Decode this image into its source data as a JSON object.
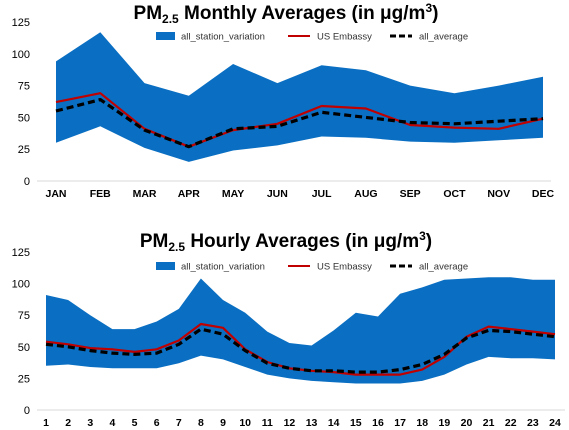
{
  "colors": {
    "band": "#0a6fc2",
    "us_embassy": "#c00000",
    "all_average": "#000000"
  },
  "chart_data": [
    {
      "type": "area",
      "title_prefix": "PM",
      "title_sub": "2.5",
      "title_rest": " Monthly Averages (in μg/m",
      "title_sup": "3",
      "title_end": ")",
      "categories": [
        "JAN",
        "FEB",
        "MAR",
        "APR",
        "MAY",
        "JUN",
        "JUL",
        "AUG",
        "SEP",
        "OCT",
        "NOV",
        "DEC"
      ],
      "ylim": [
        0,
        125
      ],
      "yticks": [
        0,
        25,
        50,
        75,
        100,
        125
      ],
      "legend_position": "top-right",
      "series": [
        {
          "name": "all_station_variation",
          "kind": "band",
          "lower": [
            30,
            43,
            26,
            15,
            24,
            28,
            35,
            34,
            31,
            30,
            32,
            34
          ],
          "upper": [
            94,
            117,
            77,
            67,
            92,
            77,
            91,
            87,
            75,
            69,
            75,
            82
          ]
        },
        {
          "name": "US Embassy",
          "kind": "line",
          "values": [
            62,
            69,
            41,
            27,
            40,
            45,
            59,
            57,
            44,
            42,
            41,
            49
          ]
        },
        {
          "name": "all_average",
          "kind": "dashed",
          "values": [
            55,
            64,
            40,
            27,
            41,
            43,
            54,
            50,
            46,
            45,
            47,
            49
          ]
        }
      ]
    },
    {
      "type": "area",
      "title_prefix": "PM",
      "title_sub": "2.5",
      "title_rest": " Hourly Averages (in μg/m",
      "title_sup": "3",
      "title_end": ")",
      "categories": [
        "1",
        "2",
        "3",
        "4",
        "5",
        "6",
        "7",
        "8",
        "9",
        "10",
        "11",
        "12",
        "13",
        "14",
        "15",
        "16",
        "17",
        "18",
        "19",
        "20",
        "21",
        "22",
        "23",
        "24"
      ],
      "ylim": [
        0,
        125
      ],
      "yticks": [
        0,
        25,
        50,
        75,
        100,
        125
      ],
      "legend_position": "top-right",
      "series": [
        {
          "name": "all_station_variation",
          "kind": "band",
          "lower": [
            35,
            36,
            34,
            33,
            33,
            33,
            37,
            43,
            40,
            34,
            28,
            25,
            23,
            22,
            21,
            21,
            21,
            23,
            28,
            36,
            42,
            41,
            41,
            40
          ],
          "upper": [
            91,
            87,
            75,
            64,
            64,
            70,
            80,
            104,
            87,
            77,
            62,
            53,
            51,
            63,
            77,
            74,
            92,
            97,
            103,
            104,
            105,
            105,
            103,
            103
          ]
        },
        {
          "name": "US Embassy",
          "kind": "line",
          "values": [
            54,
            52,
            49,
            48,
            46,
            48,
            55,
            68,
            65,
            48,
            38,
            33,
            31,
            30,
            28,
            28,
            28,
            32,
            42,
            58,
            66,
            64,
            62,
            60
          ]
        },
        {
          "name": "all_average",
          "kind": "dashed",
          "values": [
            52,
            50,
            47,
            45,
            44,
            45,
            52,
            64,
            60,
            47,
            37,
            33,
            31,
            31,
            30,
            30,
            32,
            36,
            44,
            57,
            63,
            62,
            60,
            58
          ]
        }
      ]
    }
  ]
}
